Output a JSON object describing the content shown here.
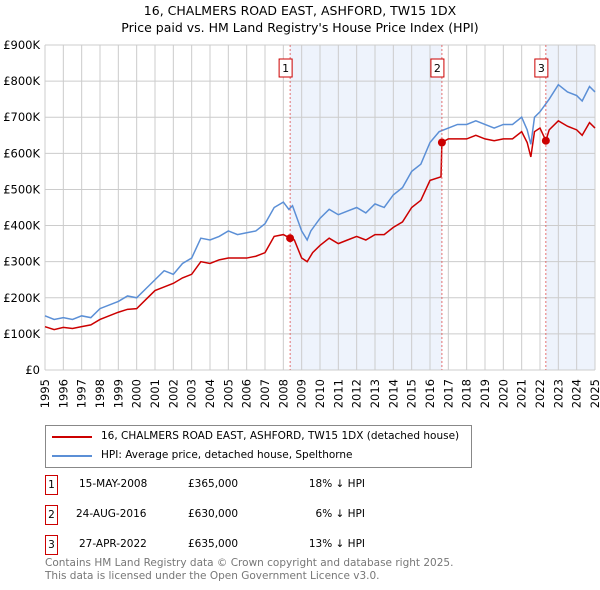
{
  "chart_data": {
    "type": "line",
    "title": "16, CHALMERS ROAD EAST, ASHFORD, TW15 1DX",
    "subtitle": "Price paid vs. HM Land Registry's House Price Index (HPI)",
    "xlim": [
      1995,
      2025
    ],
    "ylim": [
      0,
      900000
    ],
    "yticks": [
      {
        "v": 0,
        "l": "£0"
      },
      {
        "v": 100000,
        "l": "£100K"
      },
      {
        "v": 200000,
        "l": "£200K"
      },
      {
        "v": 300000,
        "l": "£300K"
      },
      {
        "v": 400000,
        "l": "£400K"
      },
      {
        "v": 500000,
        "l": "£500K"
      },
      {
        "v": 600000,
        "l": "£600K"
      },
      {
        "v": 700000,
        "l": "£700K"
      },
      {
        "v": 800000,
        "l": "£800K"
      },
      {
        "v": 900000,
        "l": "£900K"
      }
    ],
    "xticks": [
      "1995",
      "1996",
      "1997",
      "1998",
      "1999",
      "2000",
      "2001",
      "2002",
      "2003",
      "2004",
      "2005",
      "2006",
      "2007",
      "2008",
      "2009",
      "2010",
      "2011",
      "2012",
      "2013",
      "2014",
      "2015",
      "2016",
      "2017",
      "2018",
      "2019",
      "2020",
      "2021",
      "2022",
      "2023",
      "2024",
      "2025"
    ],
    "series": [
      {
        "name": "16, CHALMERS ROAD EAST, ASHFORD, TW15 1DX (detached house)",
        "color": "#cc0000",
        "x": [
          1995,
          1995.5,
          1996,
          1996.5,
          1997,
          1997.5,
          1998,
          1999,
          1999.5,
          2000,
          2000.5,
          2001,
          2001.5,
          2002,
          2002.5,
          2003,
          2003.5,
          2004,
          2004.5,
          2005,
          2005.5,
          2006,
          2006.5,
          2007,
          2007.5,
          2008,
          2008.37,
          2008.6,
          2009,
          2009.3,
          2009.6,
          2010,
          2010.5,
          2011,
          2011.5,
          2012,
          2012.5,
          2013,
          2013.5,
          2014,
          2014.5,
          2015,
          2015.5,
          2016,
          2016.6,
          2016.65,
          2017,
          2017.5,
          2018,
          2018.5,
          2019,
          2019.5,
          2020,
          2020.5,
          2021,
          2021.3,
          2021.5,
          2021.7,
          2022,
          2022.32,
          2022.5,
          2023,
          2023.5,
          2024,
          2024.3,
          2024.7,
          2025
        ],
        "y": [
          120,
          112,
          118,
          115,
          120,
          125,
          140,
          160,
          168,
          170,
          195,
          220,
          230,
          240,
          255,
          265,
          300,
          295,
          305,
          310,
          310,
          310,
          315,
          325,
          370,
          375,
          365,
          360,
          310,
          300,
          325,
          345,
          365,
          350,
          360,
          370,
          360,
          375,
          375,
          395,
          410,
          450,
          470,
          525,
          535,
          630,
          640,
          640,
          640,
          650,
          640,
          635,
          640,
          640,
          660,
          630,
          590,
          660,
          670,
          635,
          665,
          690,
          675,
          665,
          650,
          685,
          670
        ]
      },
      {
        "name": "HPI: Average price, detached house, Spelthorne",
        "color": "#5b8fd6",
        "x": [
          1995,
          1995.5,
          1996,
          1996.5,
          1997,
          1997.5,
          1998,
          1999,
          1999.5,
          2000,
          2000.5,
          2001,
          2001.5,
          2002,
          2002.5,
          2003,
          2003.5,
          2004,
          2004.5,
          2005,
          2005.5,
          2006,
          2006.5,
          2007,
          2007.5,
          2008,
          2008.3,
          2008.5,
          2009,
          2009.3,
          2009.5,
          2010,
          2010.5,
          2011,
          2011.5,
          2012,
          2012.5,
          2013,
          2013.5,
          2014,
          2014.5,
          2015,
          2015.5,
          2016,
          2016.5,
          2017,
          2017.5,
          2018,
          2018.5,
          2019,
          2019.5,
          2020,
          2020.5,
          2021,
          2021.3,
          2021.5,
          2021.7,
          2022,
          2022.5,
          2023,
          2023.5,
          2024,
          2024.3,
          2024.7,
          2025
        ],
        "y": [
          150,
          140,
          145,
          140,
          150,
          145,
          170,
          190,
          205,
          200,
          225,
          250,
          275,
          265,
          295,
          310,
          365,
          360,
          370,
          385,
          375,
          380,
          385,
          405,
          450,
          465,
          445,
          455,
          385,
          360,
          385,
          420,
          445,
          430,
          440,
          450,
          435,
          460,
          450,
          485,
          505,
          550,
          570,
          630,
          660,
          670,
          680,
          680,
          690,
          680,
          670,
          680,
          680,
          700,
          665,
          625,
          700,
          715,
          750,
          790,
          770,
          760,
          745,
          785,
          770
        ]
      }
    ],
    "sales": [
      {
        "n": "1",
        "x": 2008.37,
        "date": "15-MAY-2008",
        "price": "£365,000",
        "v": 365,
        "hpi": "18% ↓ HPI"
      },
      {
        "n": "2",
        "x": 2016.65,
        "date": "24-AUG-2016",
        "price": "£630,000",
        "v": 630,
        "hpi": "6% ↓ HPI"
      },
      {
        "n": "3",
        "x": 2022.32,
        "date": "27-APR-2022",
        "price": "£635,000",
        "v": 635,
        "hpi": "13% ↓ HPI"
      }
    ],
    "footer1": "Contains HM Land Registry data © Crown copyright and database right 2025.",
    "footer2": "This data is licensed under the Open Government Licence v3.0."
  }
}
